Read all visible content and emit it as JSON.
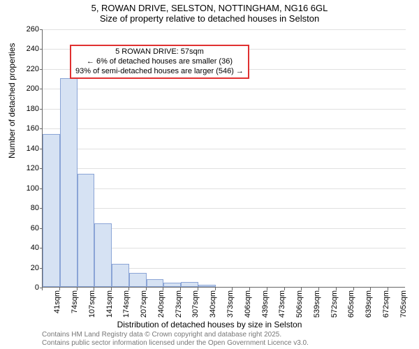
{
  "title": {
    "main": "5, ROWAN DRIVE, SELSTON, NOTTINGHAM, NG16 6GL",
    "sub": "Size of property relative to detached houses in Selston"
  },
  "chart": {
    "type": "histogram",
    "ylabel": "Number of detached properties",
    "xlabel": "Distribution of detached houses by size in Selston",
    "ylim_max": 260,
    "ytick_step": 20,
    "yticks": [
      0,
      20,
      40,
      60,
      80,
      100,
      120,
      140,
      160,
      180,
      200,
      220,
      240,
      260
    ],
    "xticks": [
      "41sqm",
      "74sqm",
      "107sqm",
      "141sqm",
      "174sqm",
      "207sqm",
      "240sqm",
      "273sqm",
      "307sqm",
      "340sqm",
      "373sqm",
      "406sqm",
      "439sqm",
      "473sqm",
      "506sqm",
      "539sqm",
      "572sqm",
      "605sqm",
      "639sqm",
      "672sqm",
      "705sqm"
    ],
    "bars": [
      154,
      210,
      114,
      64,
      23,
      14,
      8,
      4,
      5,
      2,
      0,
      0,
      0,
      0,
      0,
      0,
      0,
      0,
      0,
      0,
      0
    ],
    "bar_fill": "#d6e2f3",
    "bar_stroke": "#8aa4d6",
    "grid_color": "#e0e0e0",
    "background_color": "#ffffff",
    "marker_sqm": 57
  },
  "annotation": {
    "line1": "5 ROWAN DRIVE: 57sqm",
    "line2": "← 6% of detached houses are smaller (36)",
    "line3": "93% of semi-detached houses are larger (546) →",
    "border_color": "#e03030"
  },
  "footer": {
    "line1": "Contains HM Land Registry data © Crown copyright and database right 2025.",
    "line2": "Contains public sector information licensed under the Open Government Licence v3.0.",
    "color": "#777777"
  }
}
